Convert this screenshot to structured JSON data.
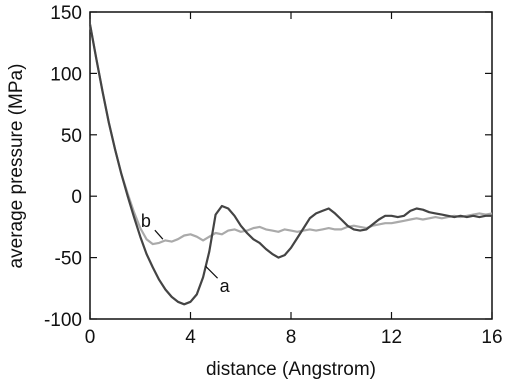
{
  "chart_data": {
    "type": "line",
    "xlabel": "distance (Angstrom)",
    "ylabel": "average pressure (MPa)",
    "xlim": [
      0,
      16
    ],
    "ylim": [
      -100,
      150
    ],
    "xticks": [
      0,
      4,
      8,
      12,
      16
    ],
    "yticks": [
      150,
      100,
      50,
      0,
      -50,
      -100
    ],
    "xtick_labels": [
      "0",
      "4",
      "8",
      "12",
      "16"
    ],
    "ytick_labels": [
      "150",
      "100",
      "50",
      "0",
      "-50",
      "-100"
    ],
    "grid": false,
    "series": [
      {
        "name": "a",
        "color": "#444444",
        "x": [
          0,
          0.25,
          0.5,
          0.75,
          1.0,
          1.25,
          1.5,
          1.75,
          2.0,
          2.25,
          2.5,
          2.75,
          3.0,
          3.25,
          3.5,
          3.75,
          4.0,
          4.25,
          4.5,
          4.75,
          5.0,
          5.25,
          5.5,
          5.75,
          6.0,
          6.25,
          6.5,
          6.75,
          7.0,
          7.25,
          7.5,
          7.75,
          8.0,
          8.25,
          8.5,
          8.75,
          9.0,
          9.25,
          9.5,
          9.75,
          10.0,
          10.25,
          10.5,
          10.75,
          11.0,
          11.25,
          11.5,
          11.75,
          12.0,
          12.25,
          12.5,
          12.75,
          13.0,
          13.25,
          13.5,
          13.75,
          14.0,
          14.25,
          14.5,
          14.75,
          15.0,
          15.25,
          15.5,
          15.75,
          16.0
        ],
        "values": [
          140,
          112,
          85,
          60,
          38,
          18,
          0,
          -17,
          -33,
          -47,
          -58,
          -68,
          -76,
          -82,
          -86,
          -88,
          -86,
          -80,
          -66,
          -45,
          -15,
          -8,
          -10,
          -16,
          -24,
          -30,
          -35,
          -38,
          -43,
          -47,
          -50,
          -48,
          -42,
          -34,
          -26,
          -18,
          -14,
          -12,
          -10,
          -14,
          -19,
          -24,
          -27,
          -28,
          -27,
          -23,
          -19,
          -16,
          -16,
          -17,
          -16,
          -12,
          -10,
          -11,
          -13,
          -14,
          -15,
          -16,
          -17,
          -16,
          -17,
          -16,
          -17,
          -16,
          -16
        ]
      },
      {
        "name": "b",
        "color": "#aaaaaa",
        "x": [
          0,
          0.25,
          0.5,
          0.75,
          1.0,
          1.25,
          1.5,
          1.75,
          2.0,
          2.25,
          2.5,
          2.75,
          3.0,
          3.25,
          3.5,
          3.75,
          4.0,
          4.25,
          4.5,
          4.75,
          5.0,
          5.25,
          5.5,
          5.75,
          6.0,
          6.25,
          6.5,
          6.75,
          7.0,
          7.25,
          7.5,
          7.75,
          8.0,
          8.25,
          8.5,
          8.75,
          9.0,
          9.25,
          9.5,
          9.75,
          10.0,
          10.25,
          10.5,
          10.75,
          11.0,
          11.25,
          11.5,
          11.75,
          12.0,
          12.25,
          12.5,
          12.75,
          13.0,
          13.25,
          13.5,
          13.75,
          14.0,
          14.25,
          14.5,
          14.75,
          15.0,
          15.25,
          15.5,
          15.75,
          16.0
        ],
        "values": [
          140,
          112,
          85,
          60,
          38,
          18,
          2,
          -13,
          -26,
          -35,
          -39,
          -38,
          -36,
          -37,
          -35,
          -32,
          -31,
          -33,
          -36,
          -33,
          -30,
          -31,
          -28,
          -27,
          -29,
          -28,
          -26,
          -25,
          -27,
          -28,
          -29,
          -27,
          -28,
          -29,
          -28,
          -27,
          -28,
          -27,
          -26,
          -27,
          -27,
          -25,
          -24,
          -25,
          -26,
          -24,
          -23,
          -22,
          -22,
          -21,
          -20,
          -19,
          -18,
          -19,
          -18,
          -17,
          -18,
          -17,
          -16,
          -17,
          -16,
          -15,
          -14,
          -15,
          -14
        ]
      }
    ]
  }
}
